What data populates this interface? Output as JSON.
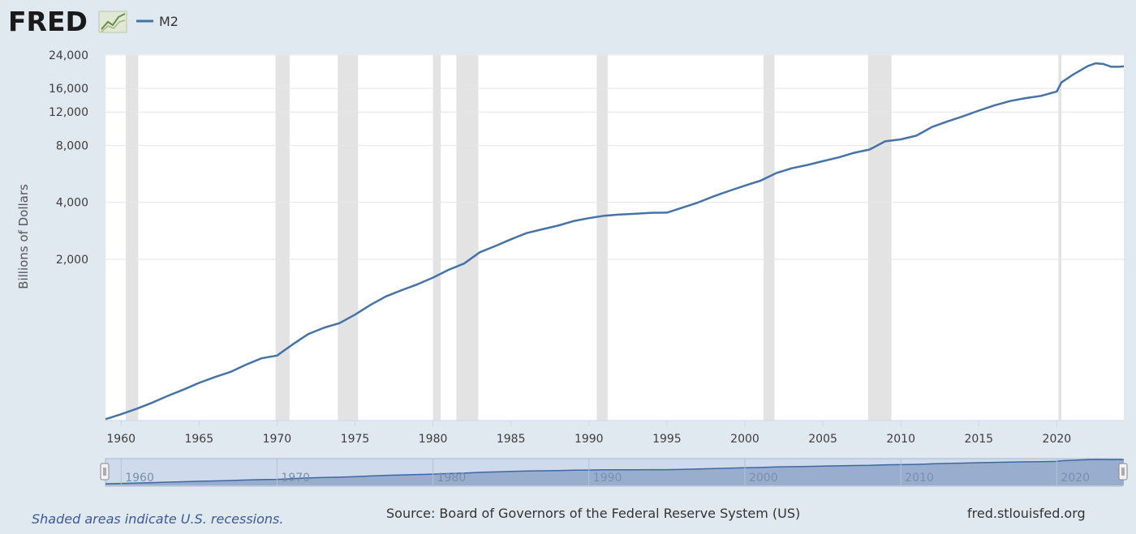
{
  "header": {
    "logo_text": "FRED",
    "legend_label": "M2"
  },
  "footer": {
    "recession_note": "Shaded areas indicate U.S. recessions.",
    "source": "Source: Board of Governors of the Federal Reserve System (US)",
    "site": "fred.stlouisfed.org"
  },
  "colors": {
    "line": "#4572a7",
    "recession": "#e3e3e3",
    "background": "#e1e9f0",
    "plot": "#ffffff",
    "navigator_fill": "#b8c8e2"
  },
  "chart_data": {
    "type": "line",
    "title": "",
    "xlabel": "",
    "ylabel": "Billions of Dollars",
    "y_scale": "log",
    "xlim": [
      1959.0,
      2024.3
    ],
    "y_ticks": [
      2000,
      4000,
      8000,
      12000,
      16000,
      24000
    ],
    "y_tick_labels": [
      "2,000",
      "4,000",
      "8,000",
      "12,000",
      "16,000",
      "24,000"
    ],
    "x_ticks": [
      1960,
      1965,
      1970,
      1975,
      1980,
      1985,
      1990,
      1995,
      2000,
      2005,
      2010,
      2015,
      2020
    ],
    "x_tick_labels": [
      "1960",
      "1965",
      "1970",
      "1975",
      "1980",
      "1985",
      "1990",
      "1995",
      "2000",
      "2005",
      "2010",
      "2015",
      "2020"
    ],
    "navigator_tick_labels": [
      "1960",
      "1970",
      "1980",
      "1990",
      "2000",
      "2010",
      "2020"
    ],
    "grid": true,
    "recessions": [
      [
        1960.3,
        1961.1
      ],
      [
        1969.9,
        1970.8
      ],
      [
        1973.9,
        1975.2
      ],
      [
        1980.0,
        1980.5
      ],
      [
        1981.5,
        1982.9
      ],
      [
        1990.5,
        1991.2
      ],
      [
        2001.2,
        2001.9
      ],
      [
        2007.9,
        2009.4
      ],
      [
        2020.1,
        2020.3
      ]
    ],
    "series": [
      {
        "name": "M2",
        "x": [
          1959.0,
          1960.0,
          1961.0,
          1962.0,
          1963.0,
          1964.0,
          1965.0,
          1966.0,
          1967.0,
          1968.0,
          1969.0,
          1970.0,
          1971.0,
          1972.0,
          1973.0,
          1974.0,
          1975.0,
          1976.0,
          1977.0,
          1978.0,
          1979.0,
          1980.0,
          1981.0,
          1982.0,
          1983.0,
          1984.0,
          1985.0,
          1986.0,
          1987.0,
          1988.0,
          1989.0,
          1990.0,
          1991.0,
          1992.0,
          1993.0,
          1994.0,
          1995.0,
          1996.0,
          1997.0,
          1998.0,
          1999.0,
          2000.0,
          2001.0,
          2002.0,
          2003.0,
          2004.0,
          2005.0,
          2006.0,
          2007.0,
          2008.0,
          2009.0,
          2010.0,
          2011.0,
          2012.0,
          2013.0,
          2014.0,
          2015.0,
          2016.0,
          2017.0,
          2018.0,
          2019.0,
          2020.0,
          2020.3,
          2021.0,
          2022.0,
          2022.5,
          2023.0,
          2023.5,
          2024.0,
          2024.3
        ],
        "y": [
          286,
          304,
          325,
          350,
          380,
          410,
          445,
          477,
          508,
          555,
          600,
          620,
          710,
          805,
          870,
          920,
          1020,
          1150,
          1275,
          1375,
          1475,
          1600,
          1760,
          1900,
          2180,
          2350,
          2550,
          2750,
          2880,
          3010,
          3180,
          3300,
          3400,
          3450,
          3480,
          3520,
          3530,
          3750,
          3990,
          4300,
          4600,
          4900,
          5200,
          5700,
          6050,
          6300,
          6600,
          6900,
          7300,
          7600,
          8400,
          8600,
          9000,
          10000,
          10700,
          11400,
          12200,
          13000,
          13700,
          14200,
          14600,
          15400,
          17200,
          18800,
          21000,
          21700,
          21500,
          20800,
          20800,
          20900
        ]
      }
    ]
  }
}
